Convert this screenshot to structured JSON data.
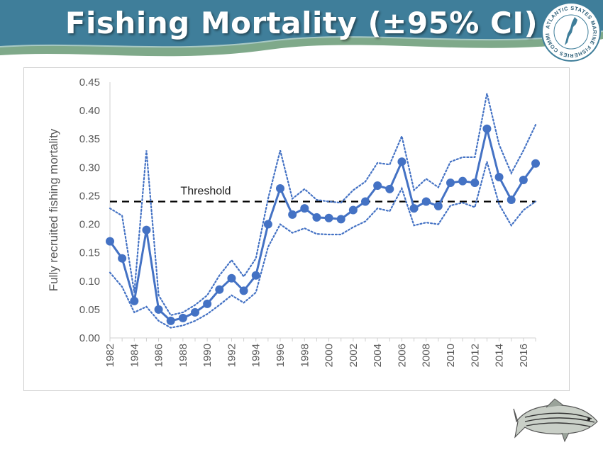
{
  "slide": {
    "title": "Fishing Mortality (±95% CI)",
    "logo_ring_text": "ATLANTIC STATES MARINE FISHERIES COMMISSION",
    "banner_color": "#3f7e9a",
    "accent_color": "#7fa98a"
  },
  "chart_data": {
    "type": "line",
    "title": "",
    "xlabel": "",
    "ylabel": "Fully recruited fishing mortality",
    "xlim": [
      1982,
      2017
    ],
    "ylim": [
      0,
      0.45
    ],
    "yticks": [
      "0.00",
      "0.05",
      "0.10",
      "0.15",
      "0.20",
      "0.25",
      "0.30",
      "0.35",
      "0.40",
      "0.45"
    ],
    "xticks": [
      "1982",
      "1984",
      "1986",
      "1988",
      "1990",
      "1992",
      "1994",
      "1996",
      "1998",
      "2000",
      "2002",
      "2004",
      "2006",
      "2008",
      "2010",
      "2012",
      "2014",
      "2016"
    ],
    "x": [
      1982,
      1983,
      1984,
      1985,
      1986,
      1987,
      1988,
      1989,
      1990,
      1991,
      1992,
      1993,
      1994,
      1995,
      1996,
      1997,
      1998,
      1999,
      2000,
      2001,
      2002,
      2003,
      2004,
      2005,
      2006,
      2007,
      2008,
      2009,
      2010,
      2011,
      2012,
      2013,
      2014,
      2015,
      2016,
      2017
    ],
    "series": [
      {
        "values": [
          0.17,
          0.14,
          0.065,
          0.19,
          0.05,
          0.03,
          0.035,
          0.045,
          0.06,
          0.085,
          0.105,
          0.083,
          0.11,
          0.2,
          0.263,
          0.217,
          0.228,
          0.212,
          0.211,
          0.209,
          0.225,
          0.24,
          0.268,
          0.262,
          0.31,
          0.228,
          0.24,
          0.232,
          0.273,
          0.276,
          0.273,
          0.368,
          0.283,
          0.243,
          0.278,
          0.307
        ],
        "color": "#4472c4",
        "style": "solid-markers"
      },
      {
        "values": [
          0.228,
          0.215,
          0.08,
          0.33,
          0.075,
          0.04,
          0.045,
          0.058,
          0.075,
          0.11,
          0.137,
          0.108,
          0.14,
          0.245,
          0.33,
          0.245,
          0.262,
          0.243,
          0.24,
          0.238,
          0.26,
          0.275,
          0.308,
          0.305,
          0.355,
          0.26,
          0.28,
          0.265,
          0.31,
          0.318,
          0.318,
          0.43,
          0.34,
          0.29,
          0.33,
          0.375
        ],
        "color": "#4472c4",
        "style": "dotted"
      },
      {
        "values": [
          0.115,
          0.09,
          0.045,
          0.055,
          0.03,
          0.018,
          0.022,
          0.03,
          0.042,
          0.058,
          0.075,
          0.062,
          0.08,
          0.16,
          0.2,
          0.185,
          0.193,
          0.183,
          0.182,
          0.182,
          0.195,
          0.205,
          0.228,
          0.223,
          0.263,
          0.198,
          0.203,
          0.2,
          0.233,
          0.238,
          0.23,
          0.31,
          0.235,
          0.198,
          0.225,
          0.24
        ],
        "color": "#4472c4",
        "style": "dotted"
      }
    ],
    "threshold": {
      "label": "Threshold",
      "value": 0.24,
      "color": "#000000"
    },
    "grid": false,
    "legend": "none"
  }
}
